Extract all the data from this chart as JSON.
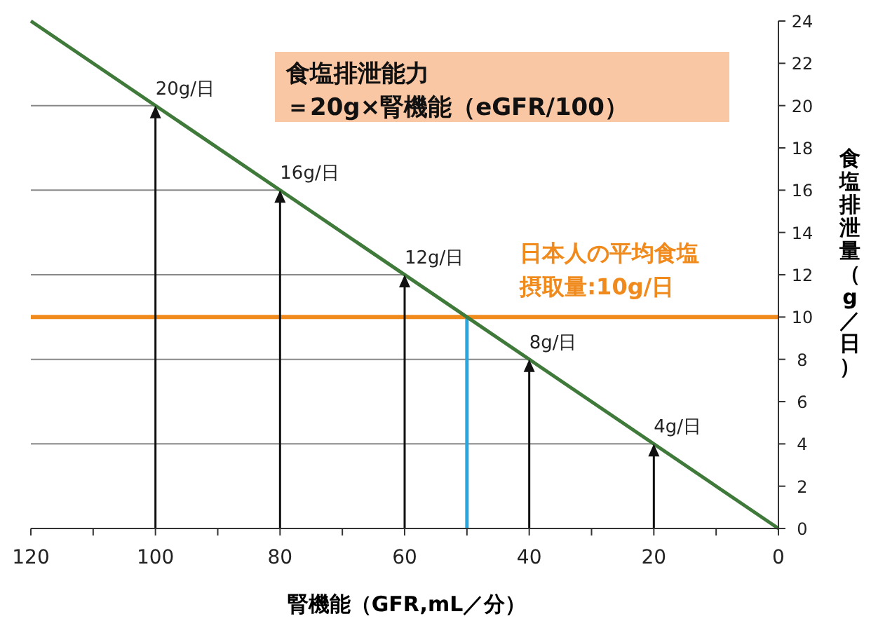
{
  "chart_data": {
    "type": "line",
    "title": "食塩排泄能力",
    "subtitle": "＝20g×腎機能（eGFR/100）",
    "xlabel": "腎機能（GFR,mL／分）",
    "ylabel": "食塩排泄量（g／日）",
    "series": [
      {
        "x": [
          120,
          0
        ],
        "values": [
          24,
          0
        ],
        "color": "#3f7a3a"
      },
      {
        "x": [
          50,
          50
        ],
        "values": [
          0,
          10
        ],
        "color": "#2aa6dc"
      },
      {
        "x": [
          120,
          100
        ],
        "values": [
          20,
          20
        ],
        "color": "#888888"
      },
      {
        "x": [
          120,
          80
        ],
        "values": [
          16,
          16
        ],
        "color": "#888888"
      },
      {
        "x": [
          120,
          60
        ],
        "values": [
          12,
          12
        ],
        "color": "#888888"
      },
      {
        "x": [
          120,
          40
        ],
        "values": [
          8,
          8
        ],
        "color": "#888888"
      },
      {
        "x": [
          120,
          20
        ],
        "values": [
          4,
          4
        ],
        "color": "#888888"
      }
    ],
    "xlim": [
      120,
      0
    ],
    "ylim": [
      0,
      24
    ],
    "xticks": [
      120,
      {
        "value": 110,
        "label": null
      },
      100,
      {
        "value": 90,
        "label": null
      },
      80,
      {
        "value": 70,
        "label": null
      },
      60,
      {
        "value": 50,
        "label": null
      },
      40,
      {
        "value": 30,
        "label": null
      },
      20,
      {
        "value": 10,
        "label": null
      },
      0
    ],
    "yticks": [
      0,
      2,
      4,
      6,
      8,
      10,
      12,
      14,
      16,
      18,
      20,
      22,
      24
    ],
    "ref_lines": [
      {
        "axis": "y",
        "value": 10,
        "label": "日本人の平均食塩摂取量:10g/日",
        "color": "#f08a1c"
      }
    ],
    "annotations": [
      {
        "text": "20g/日",
        "x": 100,
        "y": 20
      },
      {
        "text": "16g/日",
        "x": 80,
        "y": 16
      },
      {
        "text": "12g/日",
        "x": 60,
        "y": 12
      },
      {
        "text": "8g/日",
        "x": 40,
        "y": 8
      },
      {
        "text": "4g/日",
        "x": 20,
        "y": 4
      }
    ]
  }
}
